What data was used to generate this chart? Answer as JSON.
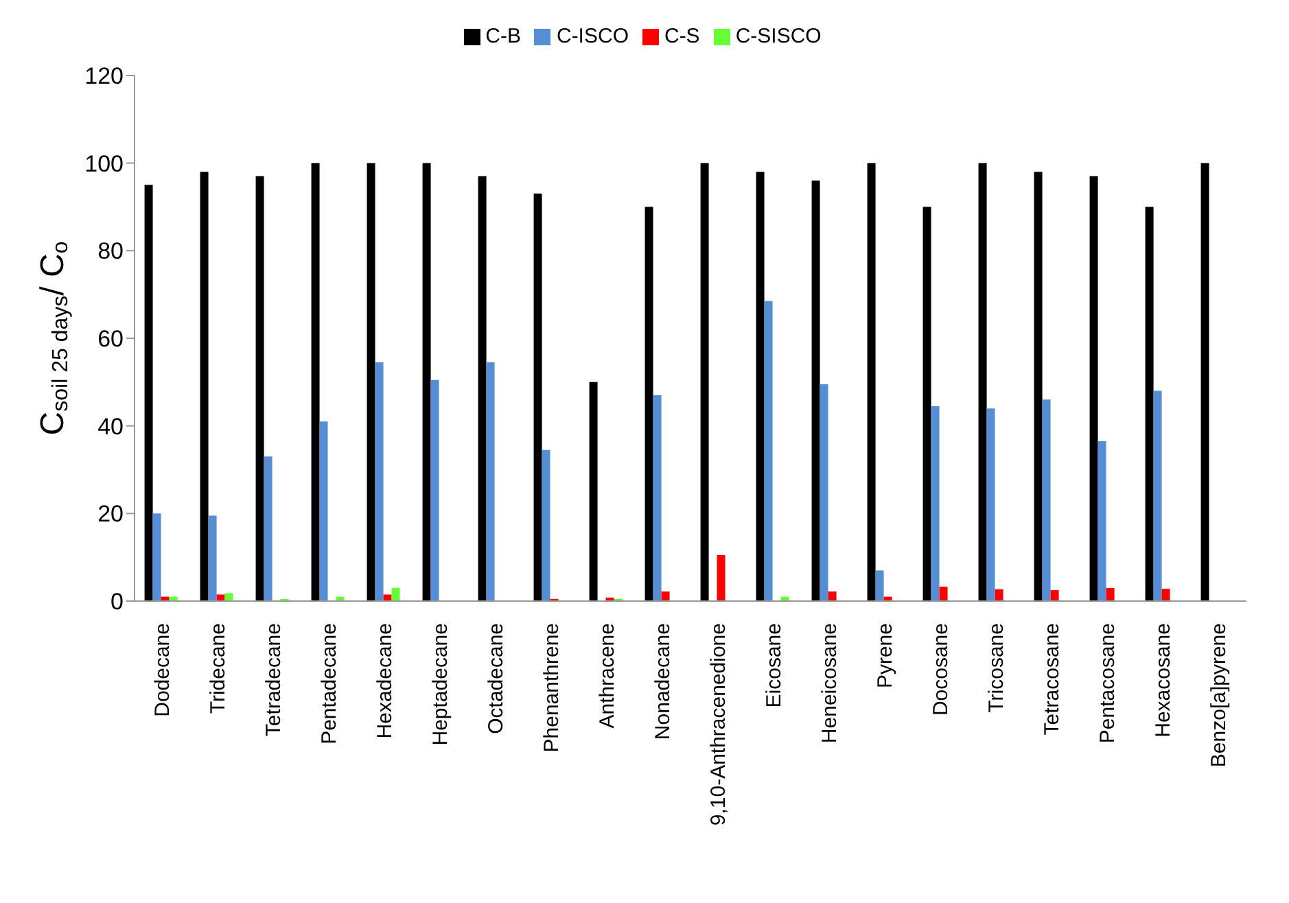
{
  "chart_data": {
    "type": "bar",
    "ylabel": "C$_{soil 25 days}$/ C$_{o}$",
    "categories": [
      "Dodecane",
      "Tridecane",
      "Tetradecane",
      "Pentadecane",
      "Hexadecane",
      "Heptadecane",
      "Octadecane",
      "Phenanthrene",
      "Anthracene",
      "Nonadecane",
      "9,10-Anthracenedione",
      "Eicosane",
      "Heneicosane",
      "Pyrene",
      "Docosane",
      "Tricosane",
      "Tetracosane",
      "Pentacosane",
      "Hexacosane",
      "Benzo[a]pyrene"
    ],
    "series": [
      {
        "name": "C-B",
        "color": "#000000",
        "values": [
          95,
          98,
          97,
          100,
          100,
          100,
          97,
          93,
          50,
          90,
          100,
          98,
          96,
          100,
          90,
          100,
          98,
          97,
          90,
          100
        ]
      },
      {
        "name": "C-ISCO",
        "color": "#558ed5",
        "values": [
          20,
          19.5,
          33,
          41,
          54.5,
          50.5,
          54.5,
          34.5,
          0,
          47,
          0,
          68.5,
          49.5,
          7,
          44.5,
          44,
          46,
          36.5,
          48,
          0
        ]
      },
      {
        "name": "C-S",
        "color": "#ff0000",
        "values": [
          1,
          1.5,
          0,
          0,
          1.5,
          0,
          0,
          0.5,
          0.8,
          2.2,
          10.5,
          0,
          2.2,
          1,
          3.3,
          2.7,
          2.5,
          3,
          2.8,
          0
        ]
      },
      {
        "name": "C-SISCO",
        "color": "#66ff33",
        "values": [
          1,
          1.8,
          0.5,
          1,
          3,
          0,
          0,
          0,
          0.5,
          0,
          0,
          1,
          0,
          0,
          0,
          0,
          0,
          0,
          0,
          0
        ]
      }
    ],
    "ylim": [
      0,
      120
    ],
    "yticks": [
      0,
      20,
      40,
      60,
      80,
      100,
      120
    ],
    "grid": false,
    "legend": "top"
  }
}
